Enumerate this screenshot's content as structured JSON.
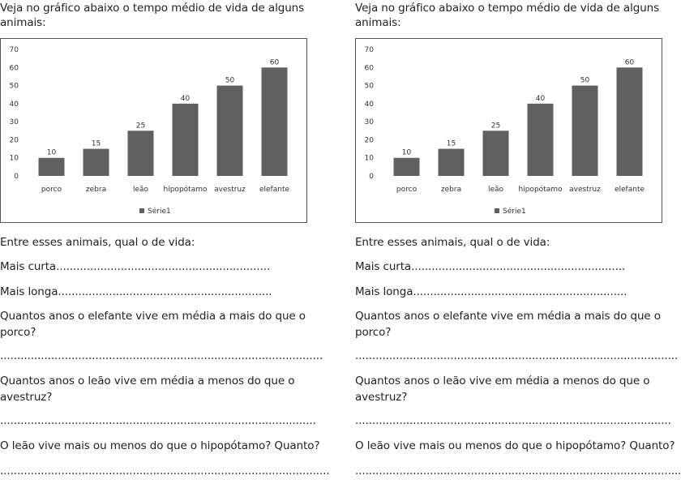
{
  "worksheet": {
    "intro": "Veja no gráfico abaixo o tempo médio de vida de alguns",
    "intro_cont": "animais:",
    "q_lead": "Entre esses animais, qual o de vida:",
    "q_short": "Mais curta",
    "q_short_dots": "...............................................................",
    "q_long": "Mais longa",
    "q_long_dots": "...............................................................",
    "q_elephant_1": "Quantos anos o elefante vive em média a mais do que o",
    "q_elephant_2": "porco?",
    "q_elephant_line": "...............................................................................................",
    "q_lion_1": "Quantos anos o leão vive em média a menos do que o",
    "q_lion_2": "avestruz?",
    "q_lion_line": ".............................................................................................",
    "q_hippo": "O leão vive mais ou menos do que o hipopótamo? Quanto?",
    "q_hippo_line": "................................................................................................."
  },
  "chart_data": {
    "type": "bar",
    "categories": [
      "porco",
      "zebra",
      "leão",
      "hipopótamo",
      "avestruz",
      "elefante"
    ],
    "series": [
      {
        "name": "Série1",
        "values": [
          10,
          15,
          25,
          40,
          50,
          60
        ]
      }
    ],
    "ylim": [
      0,
      70
    ],
    "yticks": [
      0,
      10,
      20,
      30,
      40,
      50,
      60,
      70
    ],
    "legend": "bottom",
    "color": "#606060"
  }
}
